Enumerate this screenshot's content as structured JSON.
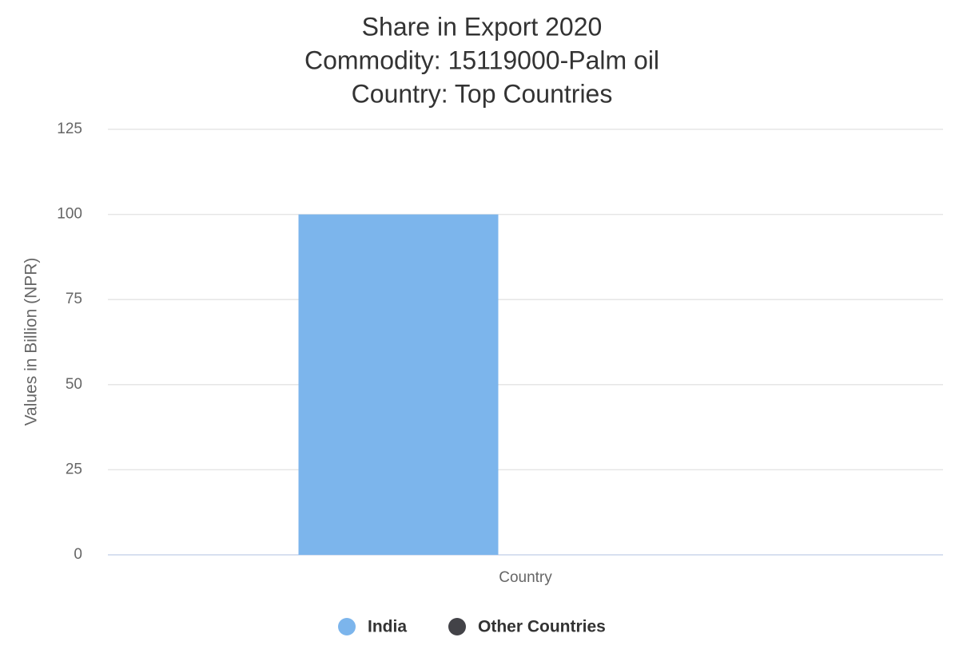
{
  "chart_data": {
    "type": "bar",
    "title_lines": [
      "Share in Export 2020",
      "Commodity: 15119000-Palm oil",
      "Country: Top Countries"
    ],
    "ylabel": "Values in Billion (NPR)",
    "categories": [
      "Country"
    ],
    "series": [
      {
        "name": "India",
        "color": "#7cb5ec",
        "values": [
          100
        ]
      },
      {
        "name": "Other Countries",
        "color": "#434348",
        "values": [
          0
        ]
      }
    ],
    "ylim": [
      0,
      125
    ],
    "yticks": [
      0,
      25,
      50,
      75,
      100,
      125
    ],
    "grid": true,
    "legend": "bottom"
  }
}
